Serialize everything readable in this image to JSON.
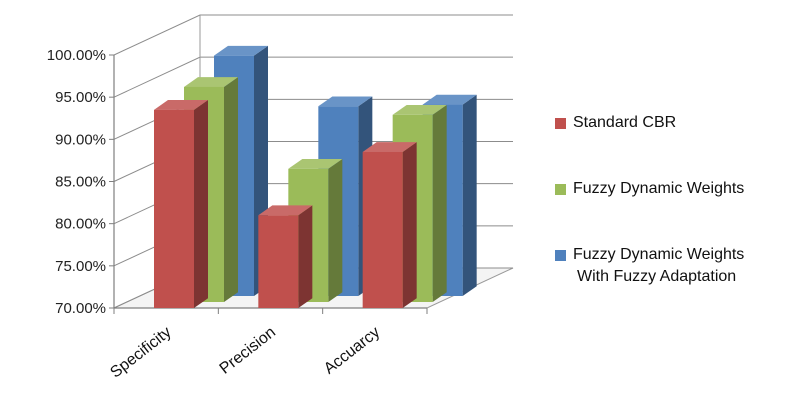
{
  "chart_data": {
    "type": "bar",
    "style": "3d-clustered-column",
    "categories": [
      "Specificity",
      "Precision",
      "Accuarcy"
    ],
    "series": [
      {
        "name": "Standard CBR",
        "color": "#c0504d",
        "values": [
          93.5,
          81.0,
          88.5
        ]
      },
      {
        "name": "Fuzzy Dynamic Weights",
        "color": "#9bbb59",
        "values": [
          95.5,
          85.8,
          92.2
        ]
      },
      {
        "name": "Fuzzy Dynamic Weights With Fuzzy Adaptation",
        "color": "#4f81bd",
        "values": [
          98.5,
          92.5,
          92.7
        ]
      }
    ],
    "y_ticks": [
      "70.00%",
      "75.00%",
      "80.00%",
      "85.00%",
      "90.00%",
      "95.00%",
      "100.00%"
    ],
    "ylim": [
      70,
      100
    ],
    "grid": true,
    "legend_position": "right"
  },
  "legend": {
    "items": [
      {
        "label": "Standard CBR",
        "color": "#c0504d"
      },
      {
        "label": "Fuzzy Dynamic Weights",
        "color": "#9bbb59"
      },
      {
        "label_line1": "Fuzzy Dynamic Weights",
        "label_line2": "With Fuzzy Adaptation",
        "color": "#4f81bd"
      }
    ]
  }
}
